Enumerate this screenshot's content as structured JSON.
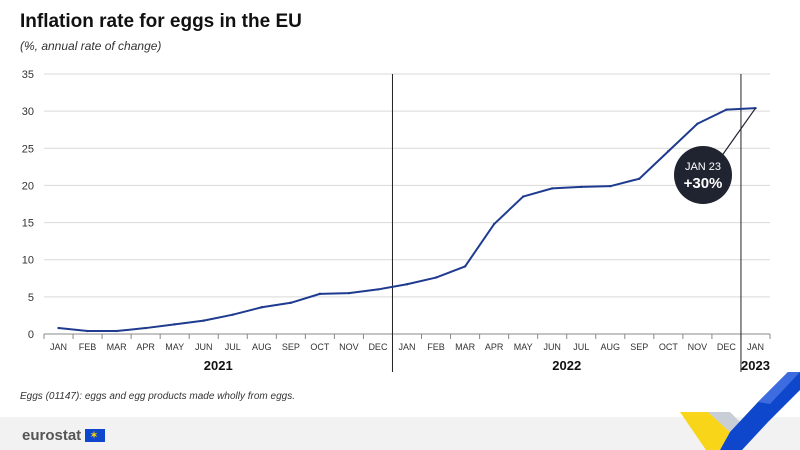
{
  "title": "Inflation rate for eggs in the EU",
  "subtitle": "(%, annual rate of change)",
  "footnote": "Eggs (01147): eggs and egg products made wholly from eggs.",
  "logo_text": "eurostat",
  "colors": {
    "line": "#1f3b8f",
    "bubble": "#1f2430",
    "grid": "#d9d9d9",
    "footer": "#f2f2f2",
    "accent_yellow": "#f8c300",
    "accent_blue": "#0e47cb"
  },
  "icons": [
    "eu-flag-icon",
    "eurostat-ribbon-decoration"
  ],
  "chart_data": {
    "type": "line",
    "title": "Inflation rate for eggs in the EU",
    "subtitle": "(%, annual rate of change)",
    "ylim": [
      0,
      35
    ],
    "yticks": [
      0,
      5,
      10,
      15,
      20,
      25,
      30,
      35
    ],
    "grid": true,
    "x": [
      "JAN",
      "FEB",
      "MAR",
      "APR",
      "MAY",
      "JUN",
      "JUL",
      "AUG",
      "SEP",
      "OCT",
      "NOV",
      "DEC",
      "JAN",
      "FEB",
      "MAR",
      "APR",
      "MAY",
      "JUN",
      "JUL",
      "AUG",
      "SEP",
      "OCT",
      "NOV",
      "DEC",
      "JAN"
    ],
    "year_labels": [
      {
        "label": "2021",
        "from": 0,
        "to": 11
      },
      {
        "label": "2022",
        "from": 12,
        "to": 23
      },
      {
        "label": "2023",
        "from": 24,
        "to": 24
      }
    ],
    "series": [
      {
        "values": [
          0.8,
          0.4,
          0.4,
          0.8,
          1.3,
          1.8,
          2.6,
          3.6,
          4.2,
          5.4,
          5.5,
          6.0,
          6.7,
          7.6,
          9.1,
          14.8,
          18.5,
          19.6,
          19.8,
          19.9,
          20.9,
          24.6,
          28.3,
          30.2,
          30.4
        ]
      }
    ],
    "annotation": {
      "label": "JAN 23",
      "value": "+30%",
      "index": 24
    }
  }
}
